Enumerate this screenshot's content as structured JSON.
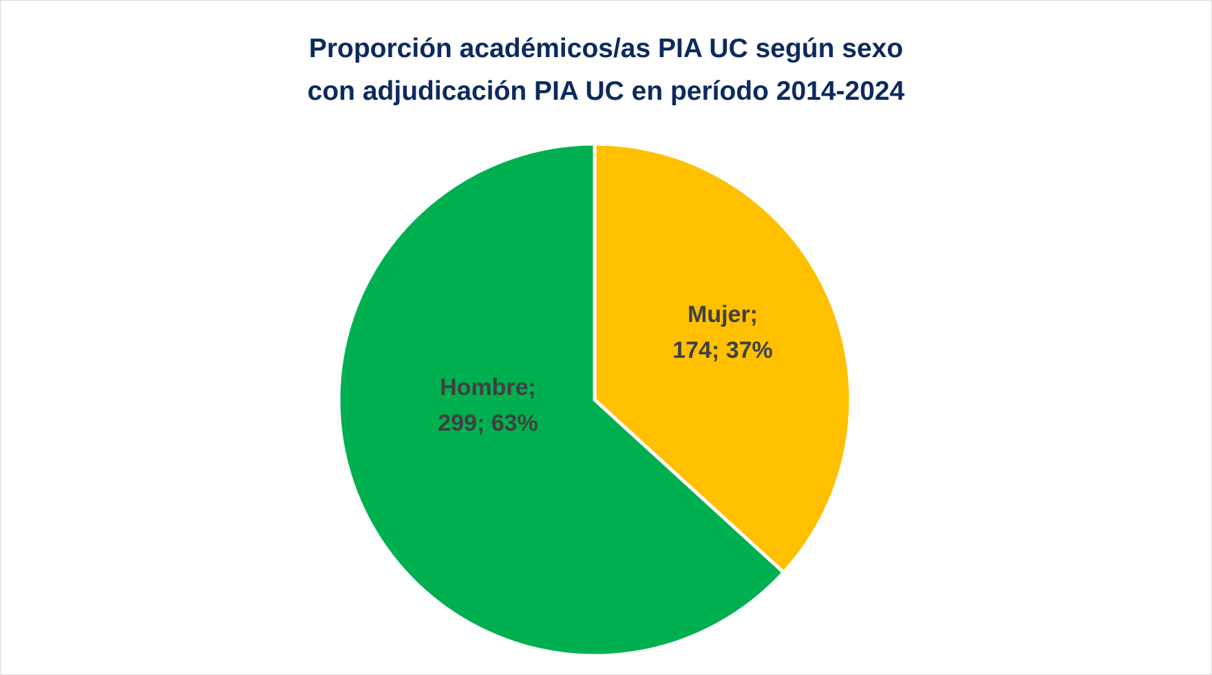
{
  "chart_data": {
    "type": "pie",
    "title_lines": [
      "Proporción académicos/as PIA UC según sexo",
      "con adjudicación PIA UC en período 2014-2024"
    ],
    "slices": [
      {
        "label": "Mujer",
        "value": 174,
        "percent": "37%",
        "color": "#ffc000",
        "label_line1": "Mujer;",
        "label_line2": "174; 37%"
      },
      {
        "label": "Hombre",
        "value": 299,
        "percent": "63%",
        "color": "#00b050",
        "label_line1": "Hombre;",
        "label_line2": "299; 63%"
      }
    ],
    "start_angle": "12 o'clock",
    "direction": "clockwise",
    "legend": "none",
    "slice_border_color": "#ffffff"
  }
}
